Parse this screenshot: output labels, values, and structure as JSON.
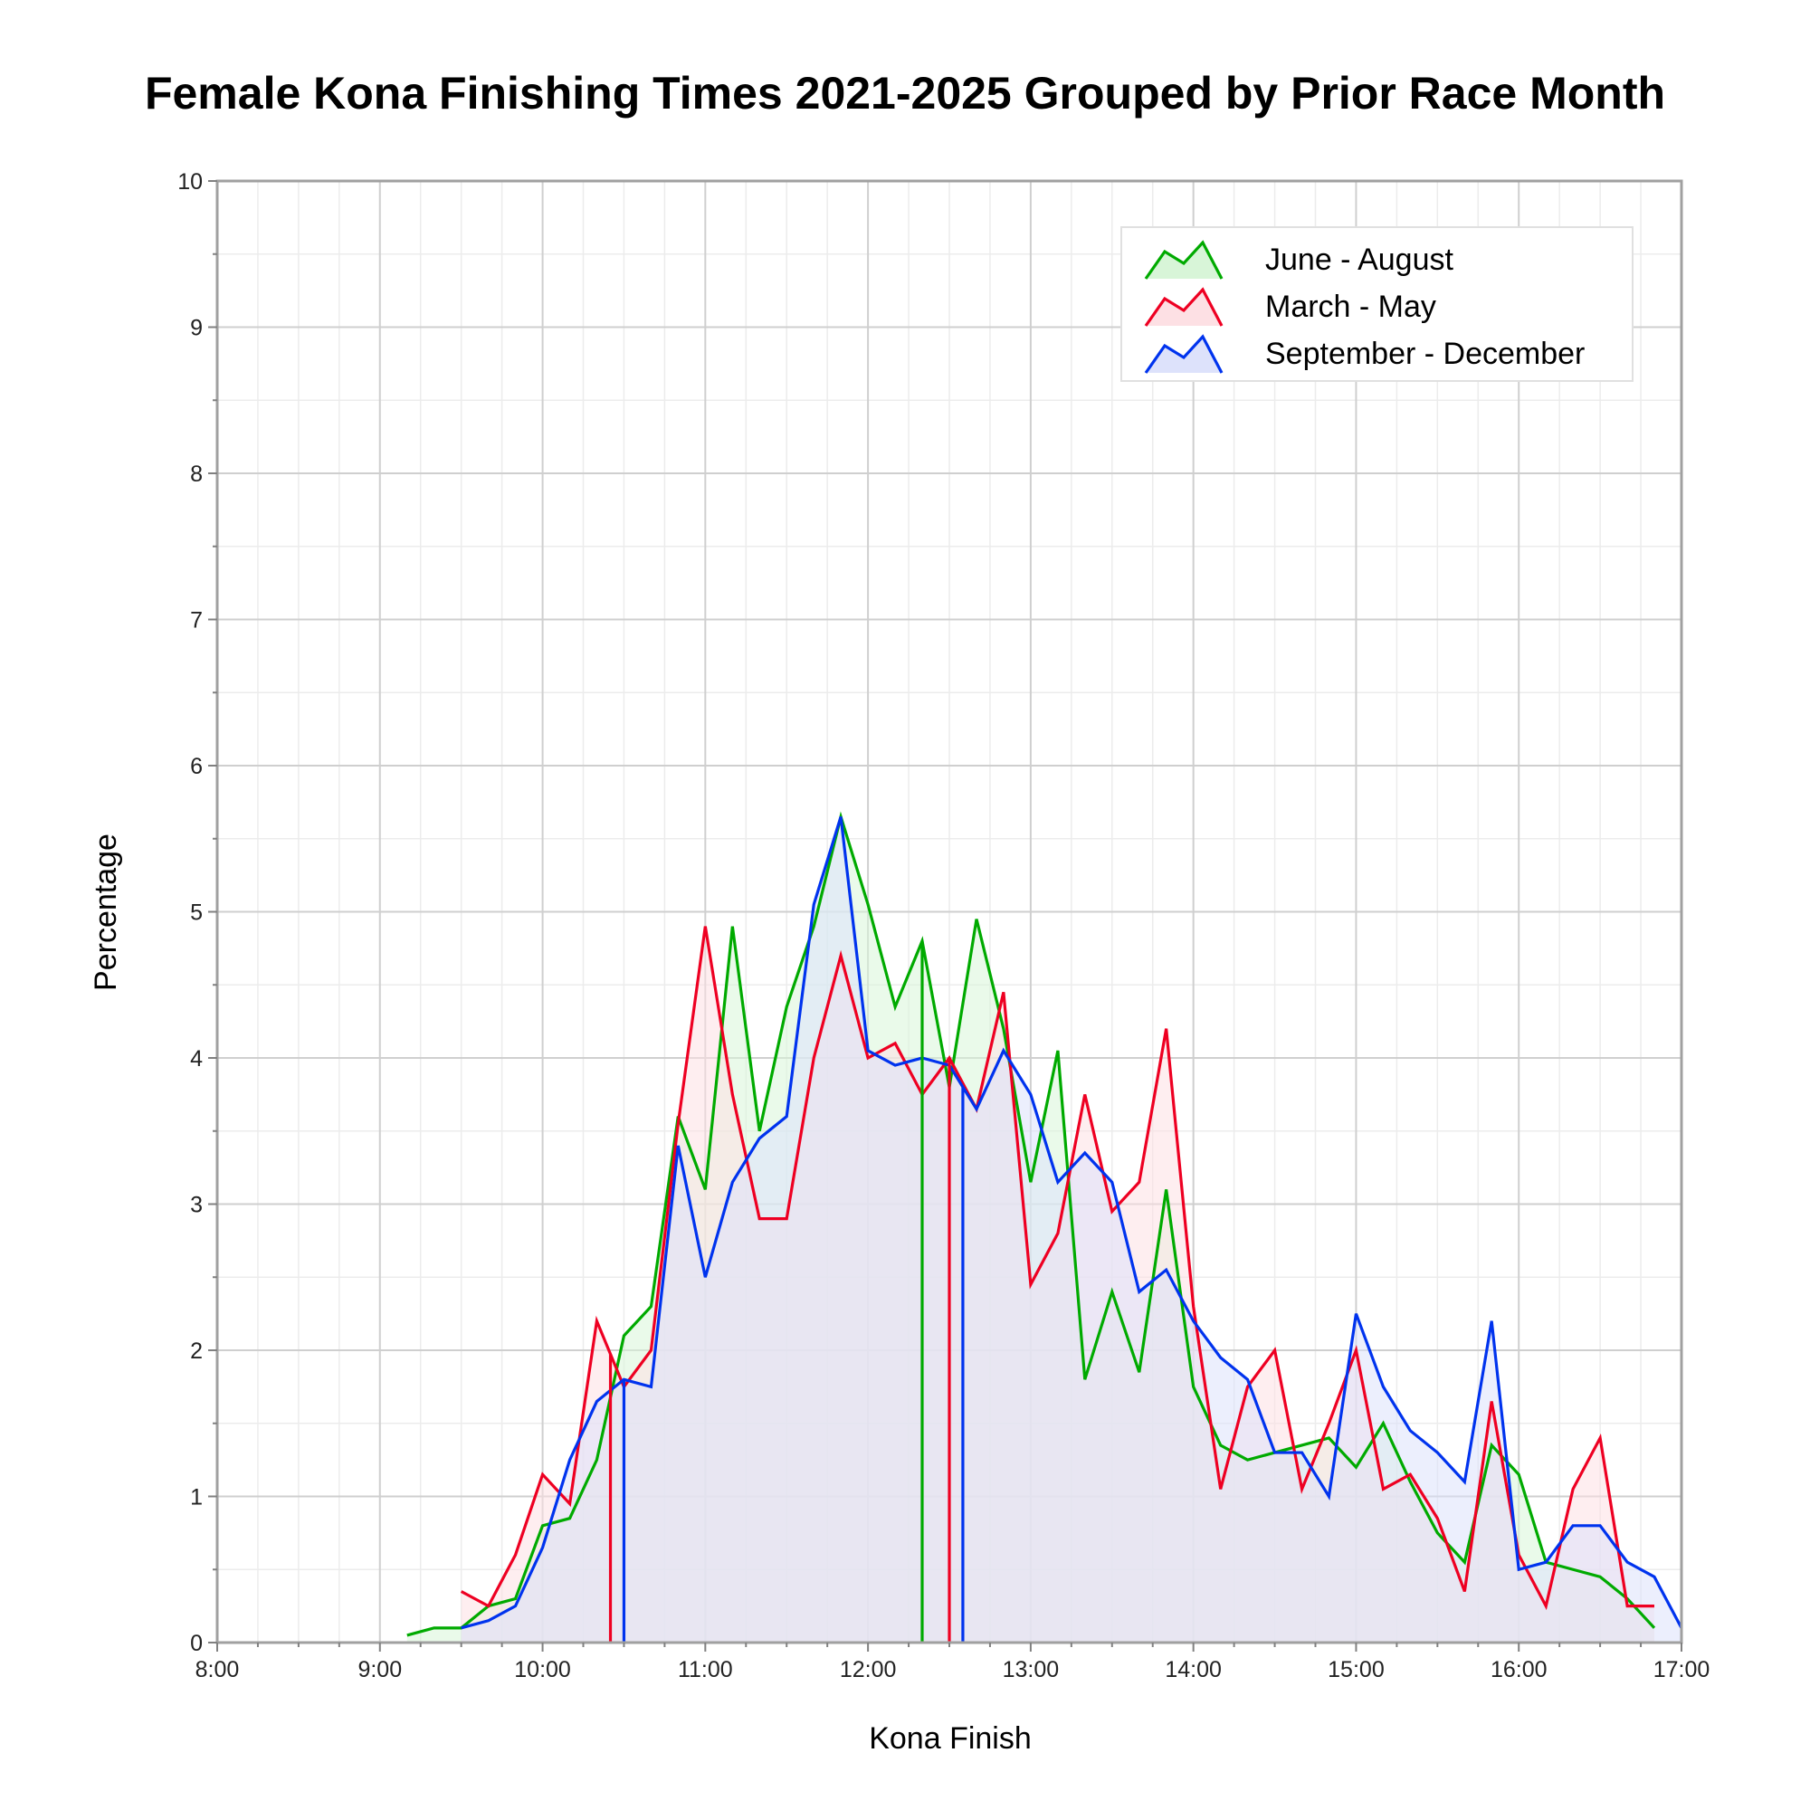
{
  "chart_data": {
    "type": "area",
    "title": "Female Kona Finishing Times 2021-2025 Grouped by Prior Race Month",
    "xlabel": "Kona Finish",
    "ylabel": "Percentage",
    "x_unit": "hours",
    "xlim": [
      8,
      17
    ],
    "ylim": [
      0,
      10
    ],
    "x_ticks": [
      "8:00",
      "9:00",
      "10:00",
      "11:00",
      "12:00",
      "13:00",
      "14:00",
      "15:00",
      "16:00",
      "17:00"
    ],
    "y_ticks": [
      "0",
      "1",
      "2",
      "3",
      "4",
      "5",
      "6",
      "7",
      "8",
      "9",
      "10"
    ],
    "grid": true,
    "legend_position": "top-right",
    "series": [
      {
        "name": "June - August",
        "color": "#00aa00",
        "fill": "#d8f5d8",
        "median_x": 12.333,
        "points": [
          [
            9.167,
            0.05
          ],
          [
            9.333,
            0.1
          ],
          [
            9.5,
            0.1
          ],
          [
            9.667,
            0.25
          ],
          [
            9.833,
            0.3
          ],
          [
            10.0,
            0.8
          ],
          [
            10.167,
            0.85
          ],
          [
            10.333,
            1.25
          ],
          [
            10.5,
            2.1
          ],
          [
            10.667,
            2.3
          ],
          [
            10.833,
            3.6
          ],
          [
            11.0,
            3.1
          ],
          [
            11.167,
            4.9
          ],
          [
            11.333,
            3.5
          ],
          [
            11.5,
            4.35
          ],
          [
            11.667,
            4.9
          ],
          [
            11.833,
            5.65
          ],
          [
            12.0,
            5.05
          ],
          [
            12.167,
            4.35
          ],
          [
            12.333,
            4.8
          ],
          [
            12.5,
            3.8
          ],
          [
            12.667,
            4.95
          ],
          [
            12.833,
            4.2
          ],
          [
            13.0,
            3.15
          ],
          [
            13.167,
            4.05
          ],
          [
            13.333,
            1.8
          ],
          [
            13.5,
            2.4
          ],
          [
            13.667,
            1.85
          ],
          [
            13.833,
            3.1
          ],
          [
            14.0,
            1.75
          ],
          [
            14.167,
            1.35
          ],
          [
            14.333,
            1.25
          ],
          [
            14.5,
            1.3
          ],
          [
            14.667,
            1.35
          ],
          [
            14.833,
            1.4
          ],
          [
            15.0,
            1.2
          ],
          [
            15.167,
            1.5
          ],
          [
            15.333,
            1.1
          ],
          [
            15.5,
            0.75
          ],
          [
            15.667,
            0.55
          ],
          [
            15.833,
            1.35
          ],
          [
            16.0,
            1.15
          ],
          [
            16.167,
            0.55
          ],
          [
            16.333,
            0.5
          ],
          [
            16.5,
            0.45
          ],
          [
            16.667,
            0.3
          ],
          [
            16.833,
            0.1
          ]
        ]
      },
      {
        "name": "March - May",
        "color": "#ee0022",
        "fill": "#fde0e4",
        "median_x": 12.5,
        "points": [
          [
            9.5,
            0.35
          ],
          [
            9.667,
            0.25
          ],
          [
            9.833,
            0.6
          ],
          [
            10.0,
            1.15
          ],
          [
            10.167,
            0.95
          ],
          [
            10.333,
            2.2
          ],
          [
            10.5,
            1.75
          ],
          [
            10.667,
            2.0
          ],
          [
            10.833,
            3.55
          ],
          [
            11.0,
            4.9
          ],
          [
            11.167,
            3.75
          ],
          [
            11.333,
            2.9
          ],
          [
            11.5,
            2.9
          ],
          [
            11.667,
            4.0
          ],
          [
            11.833,
            4.7
          ],
          [
            12.0,
            4.0
          ],
          [
            12.167,
            4.1
          ],
          [
            12.333,
            3.75
          ],
          [
            12.5,
            4.0
          ],
          [
            12.667,
            3.65
          ],
          [
            12.833,
            4.45
          ],
          [
            13.0,
            2.45
          ],
          [
            13.167,
            2.8
          ],
          [
            13.333,
            3.75
          ],
          [
            13.5,
            2.95
          ],
          [
            13.667,
            3.15
          ],
          [
            13.833,
            4.2
          ],
          [
            14.0,
            2.3
          ],
          [
            14.167,
            1.05
          ],
          [
            14.333,
            1.75
          ],
          [
            14.5,
            2.0
          ],
          [
            14.667,
            1.05
          ],
          [
            14.833,
            1.5
          ],
          [
            15.0,
            2.0
          ],
          [
            15.167,
            1.05
          ],
          [
            15.333,
            1.15
          ],
          [
            15.5,
            0.85
          ],
          [
            15.667,
            0.35
          ],
          [
            15.833,
            1.65
          ],
          [
            16.0,
            0.6
          ],
          [
            16.167,
            0.25
          ],
          [
            16.333,
            1.05
          ],
          [
            16.5,
            1.4
          ],
          [
            16.667,
            0.25
          ],
          [
            16.833,
            0.25
          ]
        ]
      },
      {
        "name": "September - December",
        "color": "#0033ee",
        "fill": "#dde2fb",
        "median_x": 10.5,
        "median2_x": 12.583,
        "points": [
          [
            9.5,
            0.1
          ],
          [
            9.667,
            0.15
          ],
          [
            9.833,
            0.25
          ],
          [
            10.0,
            0.65
          ],
          [
            10.167,
            1.25
          ],
          [
            10.333,
            1.65
          ],
          [
            10.5,
            1.8
          ],
          [
            10.667,
            1.75
          ],
          [
            10.833,
            3.4
          ],
          [
            11.0,
            2.5
          ],
          [
            11.167,
            3.15
          ],
          [
            11.333,
            3.45
          ],
          [
            11.5,
            3.6
          ],
          [
            11.667,
            5.05
          ],
          [
            11.833,
            5.65
          ],
          [
            12.0,
            4.05
          ],
          [
            12.167,
            3.95
          ],
          [
            12.333,
            4.0
          ],
          [
            12.5,
            3.95
          ],
          [
            12.667,
            3.65
          ],
          [
            12.833,
            4.05
          ],
          [
            13.0,
            3.75
          ],
          [
            13.167,
            3.15
          ],
          [
            13.333,
            3.35
          ],
          [
            13.5,
            3.15
          ],
          [
            13.667,
            2.4
          ],
          [
            13.833,
            2.55
          ],
          [
            14.0,
            2.2
          ],
          [
            14.167,
            1.95
          ],
          [
            14.333,
            1.8
          ],
          [
            14.5,
            1.3
          ],
          [
            14.667,
            1.3
          ],
          [
            14.833,
            1.0
          ],
          [
            15.0,
            2.25
          ],
          [
            15.167,
            1.75
          ],
          [
            15.333,
            1.45
          ],
          [
            15.5,
            1.3
          ],
          [
            15.667,
            1.1
          ],
          [
            15.833,
            2.2
          ],
          [
            16.0,
            0.5
          ],
          [
            16.167,
            0.55
          ],
          [
            16.333,
            0.8
          ],
          [
            16.5,
            0.8
          ],
          [
            16.667,
            0.55
          ],
          [
            16.833,
            0.45
          ],
          [
            17.0,
            0.1
          ]
        ]
      }
    ],
    "median_lines": [
      {
        "series": "March - May",
        "x": 10.417,
        "color": "#ee0022"
      },
      {
        "series": "September - December",
        "x": 10.5,
        "color": "#0033ee"
      },
      {
        "series": "June - August",
        "x": 12.333,
        "color": "#00aa00"
      },
      {
        "series": "March - May",
        "x": 12.5,
        "color": "#ee0022"
      },
      {
        "series": "September - December",
        "x": 12.583,
        "color": "#0033ee"
      }
    ]
  }
}
